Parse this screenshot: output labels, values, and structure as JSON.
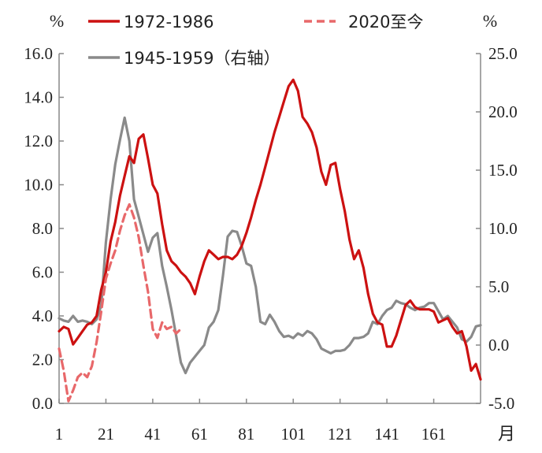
{
  "chart_data": {
    "type": "line",
    "xlabel": "月",
    "left_unit": "%",
    "right_unit": "%",
    "x_ticks": [
      1,
      21,
      41,
      61,
      81,
      101,
      121,
      141,
      161
    ],
    "xlim": [
      1,
      181
    ],
    "ylim_left": [
      0,
      16
    ],
    "ylim_right": [
      -5,
      25
    ],
    "y_ticks_left": [
      "0.0",
      "2.0",
      "4.0",
      "6.0",
      "8.0",
      "10.0",
      "12.0",
      "14.0",
      "16.0"
    ],
    "y_ticks_right": [
      "-5.0",
      "0.0",
      "5.0",
      "10.0",
      "15.0",
      "20.0",
      "25.0"
    ],
    "y_tick_values_left": [
      0,
      2,
      4,
      6,
      8,
      10,
      12,
      14,
      16
    ],
    "y_tick_values_right": [
      -5,
      0,
      5,
      10,
      15,
      20,
      25
    ],
    "legend": [
      {
        "label": "1972-1986",
        "color": "#cc1111",
        "dash": "solid"
      },
      {
        "label": "2020至今",
        "color": "#e8686a",
        "dash": "dashed"
      },
      {
        "label": "1945-1959（右轴）",
        "color": "#8a8a8a",
        "dash": "solid"
      }
    ],
    "series": [
      {
        "name": "1972-1986",
        "axis": "left",
        "color": "#cc1111",
        "dash": "solid",
        "x": [
          1,
          3,
          5,
          7,
          9,
          11,
          13,
          15,
          17,
          19,
          21,
          23,
          25,
          27,
          29,
          31,
          33,
          35,
          37,
          39,
          41,
          43,
          45,
          47,
          49,
          51,
          53,
          55,
          57,
          59,
          61,
          63,
          65,
          67,
          69,
          71,
          73,
          75,
          77,
          79,
          81,
          83,
          85,
          87,
          89,
          91,
          93,
          95,
          97,
          99,
          101,
          103,
          105,
          107,
          109,
          111,
          113,
          115,
          117,
          119,
          121,
          123,
          125,
          127,
          129,
          131,
          133,
          135,
          137,
          139,
          141,
          143,
          145,
          147,
          149,
          151,
          153,
          155,
          157,
          159,
          161,
          163,
          165,
          167,
          169,
          171,
          173,
          175,
          177,
          179,
          181
        ],
        "y": [
          3.3,
          3.5,
          3.4,
          2.7,
          3.0,
          3.3,
          3.6,
          3.7,
          4.0,
          5.2,
          6.0,
          7.4,
          8.3,
          9.5,
          10.4,
          11.3,
          11.0,
          12.1,
          12.3,
          11.2,
          10.0,
          9.6,
          8.2,
          7.0,
          6.5,
          6.3,
          6.0,
          5.8,
          5.5,
          5.0,
          5.8,
          6.5,
          7.0,
          6.8,
          6.6,
          6.7,
          6.7,
          6.6,
          6.8,
          7.2,
          7.8,
          8.5,
          9.3,
          10.0,
          10.8,
          11.6,
          12.4,
          13.1,
          13.8,
          14.5,
          14.8,
          14.3,
          13.1,
          12.8,
          12.4,
          11.7,
          10.6,
          10.0,
          10.9,
          11.0,
          9.8,
          8.8,
          7.5,
          6.6,
          7.0,
          6.2,
          5.0,
          4.1,
          3.7,
          3.6,
          2.6,
          2.6,
          3.1,
          3.8,
          4.5,
          4.7,
          4.4,
          4.3,
          4.3,
          4.3,
          4.2,
          3.7,
          3.8,
          3.9,
          3.5,
          3.2,
          3.3,
          2.6,
          1.5,
          1.8,
          1.1
        ]
      },
      {
        "name": "2020至今",
        "axis": "left",
        "color": "#e8686a",
        "dash": "dashed",
        "x": [
          1,
          3,
          5,
          7,
          9,
          11,
          13,
          15,
          17,
          19,
          21,
          23,
          25,
          27,
          29,
          31,
          33,
          35,
          37,
          39,
          41,
          43,
          45,
          47,
          49,
          51,
          53
        ],
        "y": [
          2.5,
          1.5,
          0.1,
          0.6,
          1.2,
          1.4,
          1.2,
          1.7,
          2.8,
          4.2,
          5.7,
          6.4,
          7.0,
          7.9,
          8.6,
          9.1,
          8.5,
          7.6,
          6.3,
          5.1,
          3.4,
          3.0,
          3.7,
          3.4,
          3.5,
          3.2,
          3.4
        ]
      },
      {
        "name": "1945-1959（右轴）",
        "axis": "right",
        "color": "#8a8a8a",
        "dash": "solid",
        "x": [
          1,
          3,
          5,
          7,
          9,
          11,
          13,
          15,
          17,
          19,
          21,
          23,
          25,
          27,
          29,
          31,
          33,
          35,
          37,
          39,
          41,
          43,
          45,
          47,
          49,
          51,
          53,
          55,
          57,
          59,
          61,
          63,
          65,
          67,
          69,
          71,
          73,
          75,
          77,
          79,
          81,
          83,
          85,
          87,
          89,
          91,
          93,
          95,
          97,
          99,
          101,
          103,
          105,
          107,
          109,
          111,
          113,
          115,
          117,
          119,
          121,
          123,
          125,
          127,
          129,
          131,
          133,
          135,
          137,
          139,
          141,
          143,
          145,
          147,
          149,
          151,
          153,
          155,
          157,
          159,
          161,
          163,
          165,
          167,
          169,
          171,
          173,
          175,
          177,
          179,
          181
        ],
        "y": [
          2.3,
          2.1,
          2.0,
          2.5,
          2.0,
          2.1,
          2.0,
          1.8,
          2.2,
          3.4,
          8.8,
          12.5,
          15.5,
          17.6,
          19.5,
          17.5,
          12.5,
          11.0,
          9.5,
          8.0,
          9.2,
          9.6,
          6.8,
          5.0,
          3.0,
          0.8,
          -1.5,
          -2.4,
          -1.5,
          -1.0,
          -0.5,
          0.0,
          1.5,
          2.0,
          3.0,
          6.0,
          9.3,
          9.8,
          9.7,
          8.5,
          7.0,
          6.8,
          5.0,
          2.0,
          1.8,
          2.6,
          2.0,
          1.2,
          0.7,
          0.8,
          0.6,
          1.0,
          0.8,
          1.2,
          1.0,
          0.5,
          -0.3,
          -0.5,
          -0.7,
          -0.5,
          -0.5,
          -0.4,
          0.0,
          0.6,
          0.6,
          0.7,
          1.0,
          2.0,
          1.8,
          2.5,
          3.0,
          3.2,
          3.8,
          3.6,
          3.5,
          3.2,
          3.0,
          3.2,
          3.3,
          3.6,
          3.6,
          2.9,
          2.2,
          2.5,
          2.0,
          1.5,
          0.5,
          0.3,
          0.7,
          1.6,
          1.7
        ]
      }
    ]
  }
}
